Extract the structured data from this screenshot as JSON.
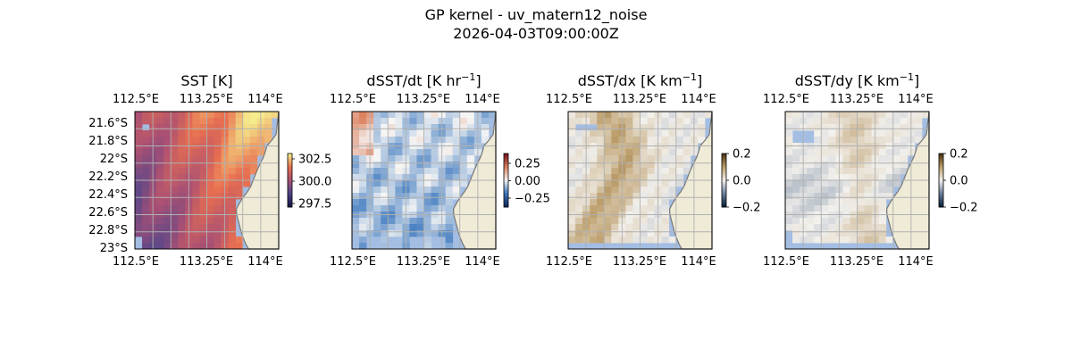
{
  "figure": {
    "title_line1": "GP kernel - uv_matern12_noise",
    "title_line2": "2026-04-03T09:00:00Z"
  },
  "chart_data": [
    {
      "type": "heatmap",
      "title_main": "SST [K]",
      "title_exp": "",
      "title_end": "",
      "xlabels": [
        "112.5°E",
        "113.25°E",
        "114°E"
      ],
      "ylabels": [
        "21.6°S",
        "21.8°S",
        "22°S",
        "22.2°S",
        "22.4°S",
        "22.6°S",
        "22.8°S",
        "23°S"
      ],
      "show_ylabels": true,
      "colormap": "thermal",
      "colorbar_ticks": [
        "302.5",
        "300.0",
        "297.5"
      ],
      "colorbar_range": [
        296.8,
        303.2
      ]
    },
    {
      "type": "heatmap",
      "title_main": "dSST/dt [K hr",
      "title_exp": "−1",
      "title_end": "]",
      "xlabels": [
        "112.5°E",
        "113.25°E",
        "114°E"
      ],
      "ylabels": [],
      "show_ylabels": false,
      "colormap": "balance",
      "colorbar_ticks": [
        "0.25",
        "0.00",
        "−0.25"
      ],
      "colorbar_range": [
        -0.45,
        0.45
      ]
    },
    {
      "type": "heatmap",
      "title_main": "dSST/dx [K km",
      "title_exp": "−1",
      "title_end": "]",
      "xlabels": [
        "112.5°E",
        "113.25°E",
        "114°E"
      ],
      "ylabels": [],
      "show_ylabels": false,
      "colormap": "diff",
      "colorbar_ticks": [
        "0.2",
        "0.0",
        "−0.2"
      ],
      "colorbar_range": [
        -0.2,
        0.2
      ]
    },
    {
      "type": "heatmap",
      "title_main": "dSST/dy [K km",
      "title_exp": "−1",
      "title_end": "]",
      "xlabels": [
        "112.5°E",
        "113.25°E",
        "114°E"
      ],
      "ylabels": [],
      "show_ylabels": false,
      "colormap": "diff",
      "colorbar_ticks": [
        "0.2",
        "0.0",
        "−0.2"
      ],
      "colorbar_range": [
        -0.2,
        0.2
      ]
    }
  ],
  "colors": {
    "land": "#efebd6",
    "ocean_mask": "#a3bde3",
    "coast": "#777777",
    "grid": "#b0b0b0"
  }
}
